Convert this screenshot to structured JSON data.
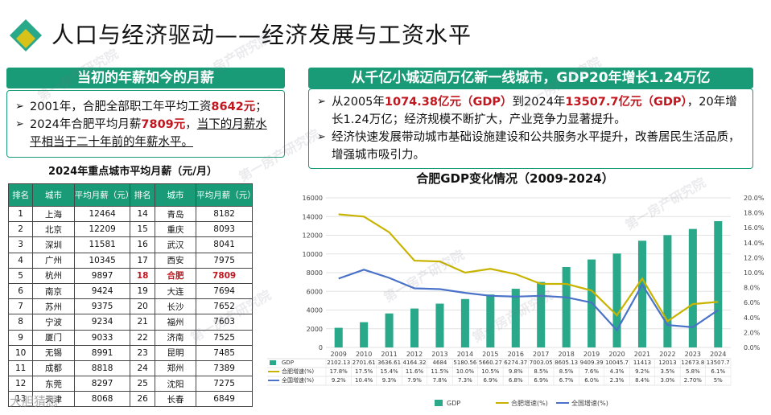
{
  "page": {
    "title": "人口与经济驱动——经济发展与工资水平",
    "brand": "大胆猜想",
    "watermark": "第一房产研究院"
  },
  "left_panel": {
    "heading": "当初的年薪如今的月薪",
    "b1": {
      "pre": "2001年，合肥全部职工年平均工资",
      "val": "8642元",
      "post": "；"
    },
    "b2": {
      "pre": "2024年合肥平均月薪",
      "val": "7809元",
      "mid": "，",
      "ul": "当下的月薪水平相当于二十年前的年薪水平。"
    }
  },
  "right_panel": {
    "heading": "从千亿小城迈向万亿新一线城市，GDP20年增长1.24万亿",
    "b1": {
      "p1": "从2005年",
      "v1": "1074.38亿元（GDP）",
      "p2": "到2024年",
      "v2": "13507.7亿元（GDP）",
      "p3": "，20年增长1.24万亿；经济规模不断扩大，产业竞争力显著提升。"
    },
    "b2": "经济快速发展带动城市基础设施建设和公共服务水平提升，改善居民生活品质，增强城市吸引力。"
  },
  "salary_table": {
    "title": "2024年重点城市平均月薪（元/月）",
    "headers": [
      "排名",
      "城市",
      "平均月薪（元）",
      "排名",
      "城市",
      "平均月薪（元）"
    ],
    "rows": [
      [
        "1",
        "上海",
        "12464",
        "14",
        "青岛",
        "8182"
      ],
      [
        "2",
        "北京",
        "12209",
        "15",
        "重庆",
        "8093"
      ],
      [
        "3",
        "深圳",
        "11581",
        "16",
        "武汉",
        "8041"
      ],
      [
        "4",
        "广州",
        "10345",
        "17",
        "西安",
        "7975"
      ],
      [
        "5",
        "杭州",
        "9897",
        "18",
        "合肥",
        "7809"
      ],
      [
        "6",
        "南京",
        "9424",
        "19",
        "大连",
        "7694"
      ],
      [
        "7",
        "苏州",
        "9375",
        "20",
        "长沙",
        "7652"
      ],
      [
        "8",
        "宁波",
        "9234",
        "21",
        "福州",
        "7603"
      ],
      [
        "9",
        "厦门",
        "9033",
        "22",
        "济南",
        "7525"
      ],
      [
        "10",
        "无锡",
        "8991",
        "23",
        "昆明",
        "7485"
      ],
      [
        "11",
        "成都",
        "8818",
        "24",
        "郑州",
        "7389"
      ],
      [
        "12",
        "东莞",
        "8297",
        "25",
        "沈阳",
        "7275"
      ],
      [
        "13",
        "天津",
        "8068",
        "26",
        "长春",
        "6849"
      ]
    ],
    "highlight_city": "合肥"
  },
  "chart_data": {
    "type": "bar",
    "title": "合肥GDP变化情况（2009-2024）",
    "categories": [
      "2009",
      "2010",
      "2011",
      "2012",
      "2013",
      "2014",
      "2015",
      "2016",
      "2017",
      "2018",
      "2019",
      "2020",
      "2021",
      "2022",
      "2023",
      "2024"
    ],
    "series": [
      {
        "name": "GDP",
        "type": "bar",
        "axis": "left",
        "color": "#2aa98a",
        "values": [
          2102.1,
          2701.6,
          3636.6,
          4164.3,
          4684,
          5180.6,
          5660.3,
          6274.4,
          7003.1,
          8605.1,
          9409.4,
          10045.7,
          11413,
          12013,
          12673.8,
          13507.7
        ],
        "labels": [
          "2102.13",
          "2701.61",
          "3636.61",
          "4164.32",
          "4684",
          "5180.56",
          "5660.27",
          "6274.37",
          "7003.05",
          "8605.13",
          "9409.39",
          "10045.7",
          "11413",
          "12013",
          "12673.8",
          "13507.7"
        ]
      },
      {
        "name": "合肥增速(%)",
        "type": "line",
        "axis": "right",
        "color": "#c8b400",
        "values": [
          17.8,
          17.5,
          15.4,
          11.6,
          11.5,
          10.0,
          10.5,
          9.8,
          8.5,
          8.5,
          7.6,
          4.3,
          9.2,
          3.5,
          5.8,
          6.1
        ],
        "labels": [
          "17.8%",
          "17.5%",
          "15.4%",
          "11.6%",
          "11.5%",
          "10.0%",
          "10.5%",
          "9.8%",
          "8.5%",
          "8.5%",
          "7.6%",
          "4.3%",
          "9.2%",
          "3.5%",
          "5.8%",
          "6.1%"
        ]
      },
      {
        "name": "全国增速(%)",
        "type": "line",
        "axis": "right",
        "color": "#4a72c8",
        "values": [
          9.2,
          10.4,
          9.3,
          7.9,
          7.8,
          7.3,
          6.9,
          6.8,
          6.9,
          6.7,
          6.0,
          2.3,
          8.4,
          3.0,
          2.7,
          5.0
        ],
        "labels": [
          "9.2%",
          "10.4%",
          "9.3%",
          "7.9%",
          "7.8%",
          "7.3%",
          "6.9%",
          "6.8%",
          "6.9%",
          "6.7%",
          "6.0%",
          "2.3%",
          "8.4%",
          "3.0%",
          "2.70%",
          "5%"
        ]
      }
    ],
    "ylim": [
      0,
      16000
    ],
    "yticks": [
      "0",
      "2000",
      "4000",
      "6000",
      "8000",
      "10000",
      "12000",
      "14000",
      "16000"
    ],
    "y2lim": [
      0,
      20
    ],
    "y2ticks": [
      "0.0%",
      "2.0%",
      "4.0%",
      "6.0%",
      "8.0%",
      "10.0%",
      "12.0%",
      "14.0%",
      "16.0%",
      "18.0%",
      "20.0%"
    ],
    "legend": [
      "GDP",
      "合肥增速(%)",
      "全国增速(%)"
    ],
    "legend_position": "bottom",
    "grid": true
  }
}
